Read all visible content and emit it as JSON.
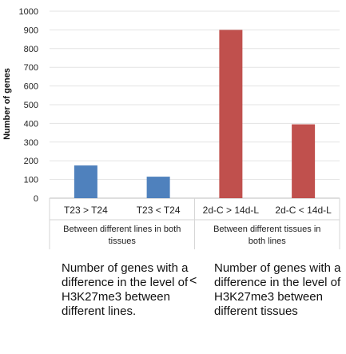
{
  "chart_data": {
    "type": "bar",
    "ylabel": "Number of genes",
    "xlabel": "",
    "ylim": [
      0,
      1000
    ],
    "yticks": [
      0,
      100,
      200,
      300,
      400,
      500,
      600,
      700,
      800,
      900,
      1000
    ],
    "grid": true,
    "categories": [
      "T23 > T24",
      "T23 < T24",
      "2d-C > 14d-L",
      "2d-C < 14d-L"
    ],
    "values": [
      175,
      115,
      900,
      395
    ],
    "bar_colors": [
      "#4f81bd",
      "#4f81bd",
      "#c0504d",
      "#c0504d"
    ],
    "groups": [
      {
        "lines": [
          "Between different lines in both",
          "tissues"
        ],
        "categories": [
          0,
          1
        ]
      },
      {
        "lines": [
          "Between different tissues in",
          "both lines"
        ],
        "categories": [
          2,
          3
        ]
      }
    ]
  },
  "captions": {
    "left": "Number of genes with a difference in the level of H3K27me3 between different lines.",
    "comparator": "<",
    "right": "Number of genes with a difference in the level of H3K27me3 between different tissues"
  }
}
